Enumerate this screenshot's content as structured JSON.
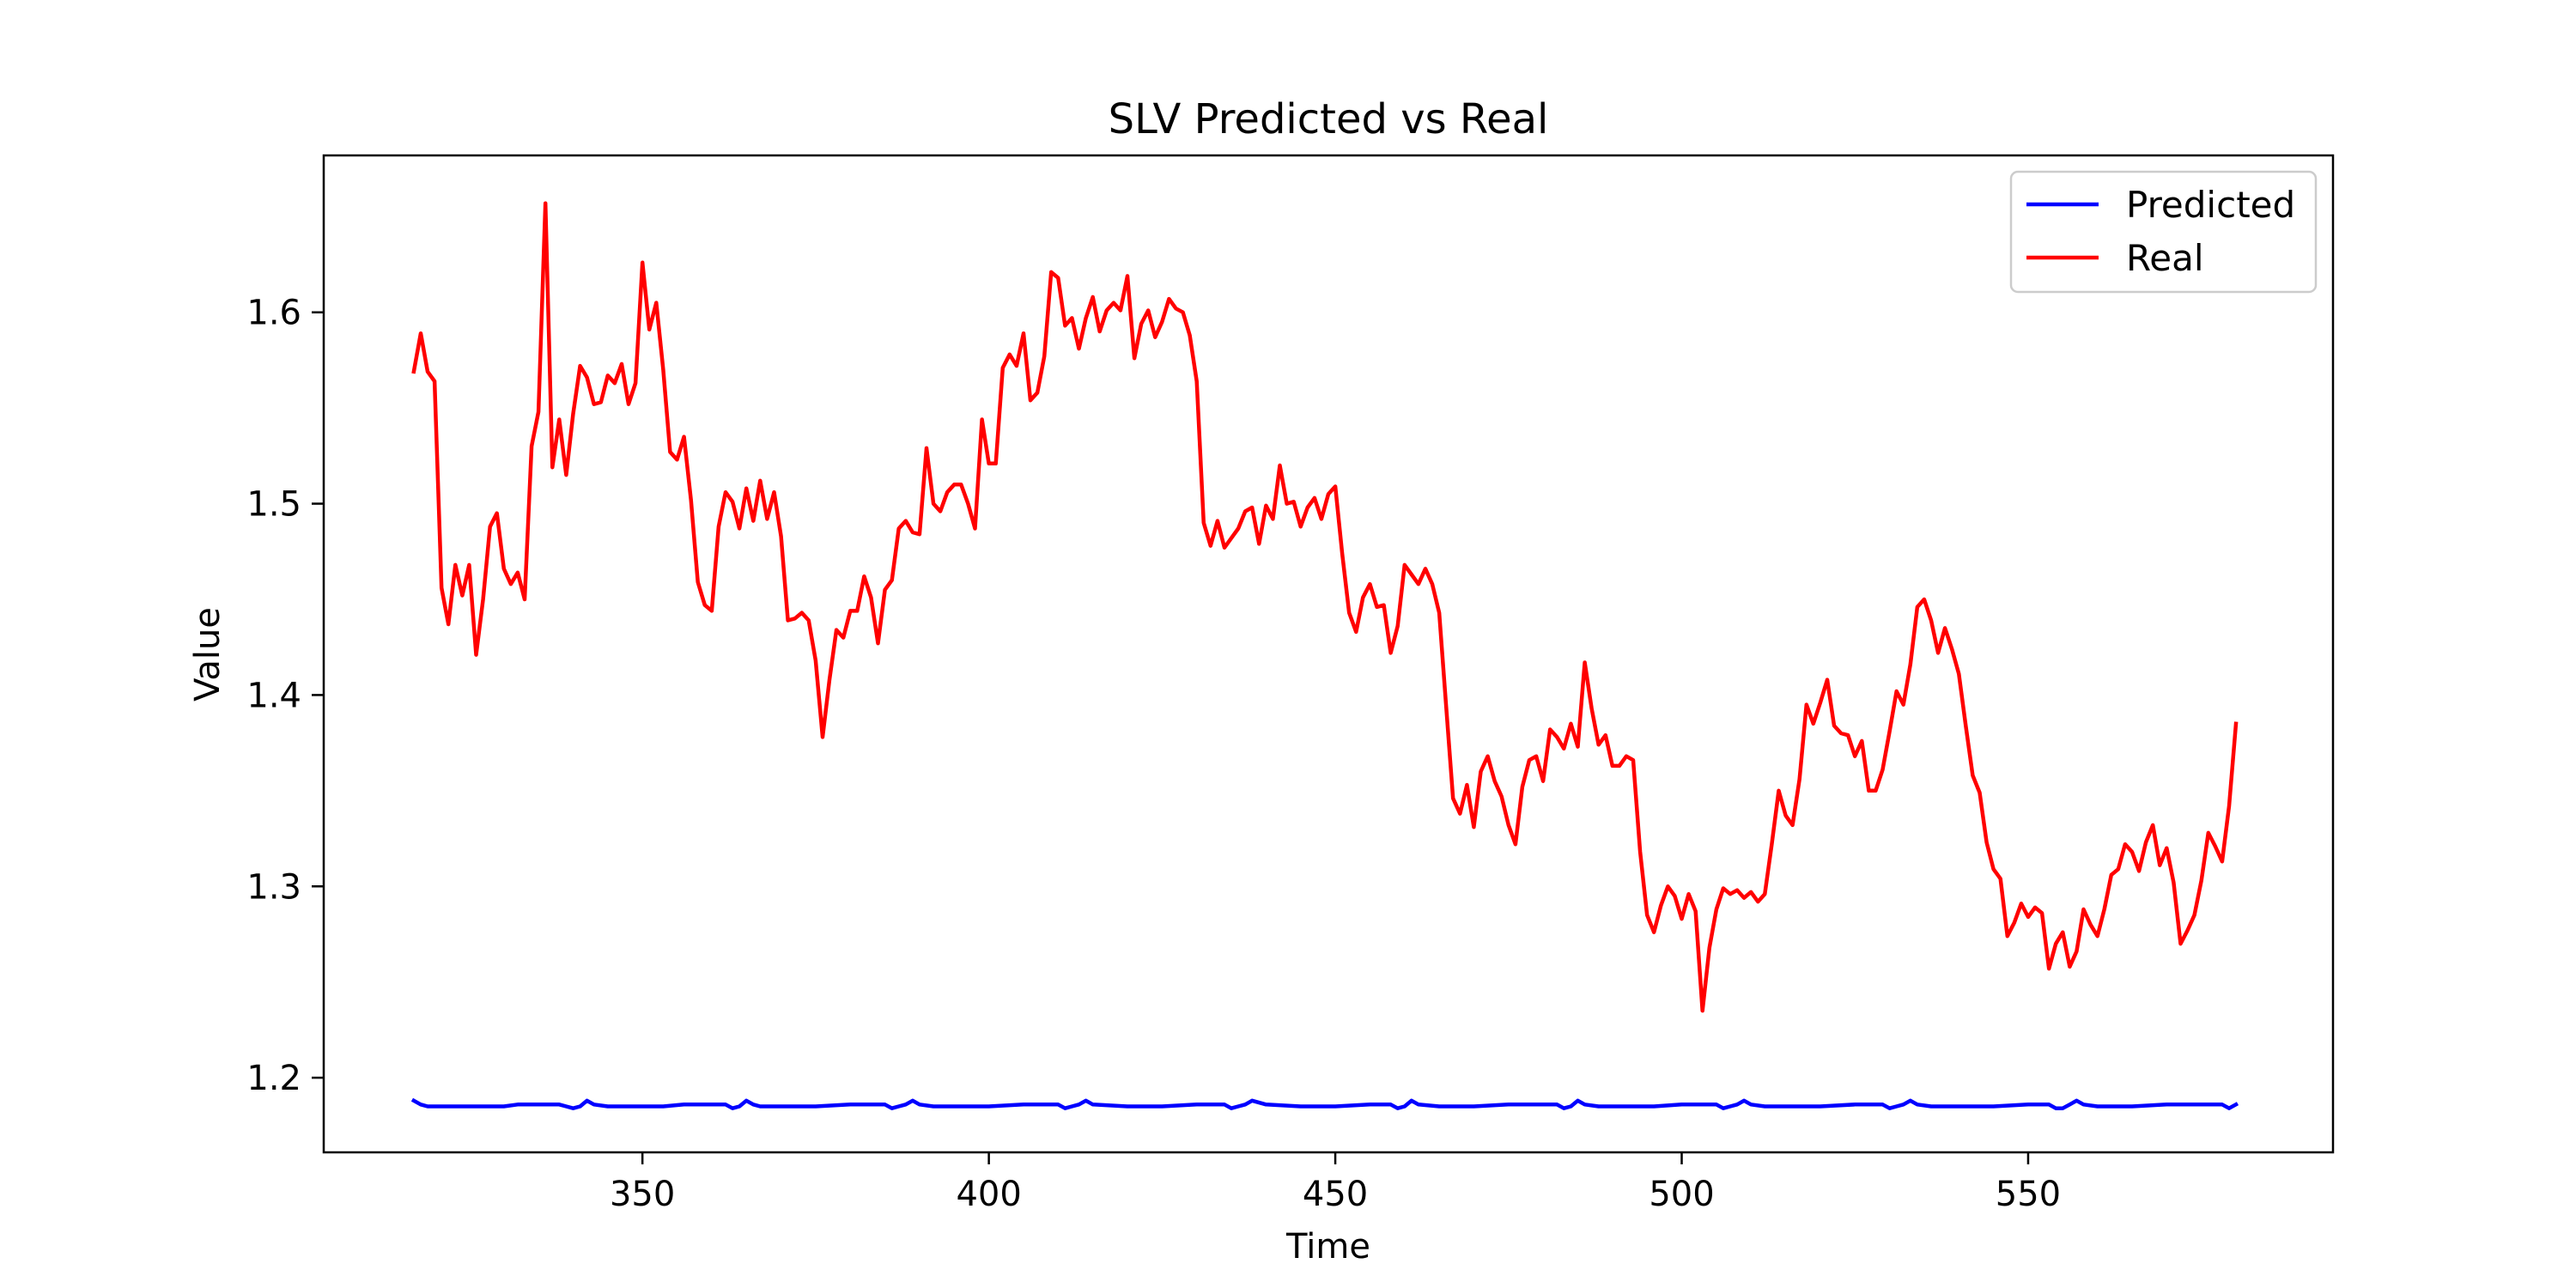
{
  "chart_data": {
    "type": "line",
    "title": "SLV Predicted vs Real",
    "xlabel": "Time",
    "ylabel": "Value",
    "xlim": [
      304,
      594
    ],
    "ylim": [
      1.161,
      1.682
    ],
    "xticks": [
      350,
      400,
      450,
      500,
      550
    ],
    "yticks": [
      1.2,
      1.3,
      1.4,
      1.5,
      1.6
    ],
    "xtick_labels": [
      "350",
      "400",
      "450",
      "500",
      "550"
    ],
    "ytick_labels": [
      "1.2",
      "1.3",
      "1.4",
      "1.5",
      "1.6"
    ],
    "grid": false,
    "legend_position": "top-right",
    "series": [
      {
        "name": "Predicted",
        "color": "#0000ff",
        "x": [
          317,
          318,
          319,
          320,
          322,
          324,
          326,
          328,
          330,
          332,
          334,
          336,
          338,
          339,
          340,
          341,
          342,
          343,
          345,
          347,
          350,
          353,
          356,
          359,
          362,
          363,
          364,
          365,
          366,
          367,
          370,
          375,
          380,
          385,
          386,
          387,
          388,
          389,
          390,
          392,
          395,
          400,
          405,
          410,
          411,
          412,
          413,
          414,
          415,
          420,
          425,
          430,
          434,
          435,
          436,
          437,
          438,
          440,
          445,
          450,
          455,
          458,
          459,
          460,
          461,
          462,
          465,
          470,
          475,
          480,
          482,
          483,
          484,
          485,
          486,
          488,
          492,
          496,
          500,
          503,
          505,
          506,
          507,
          508,
          509,
          510,
          512,
          516,
          520,
          525,
          529,
          530,
          531,
          532,
          533,
          534,
          536,
          540,
          545,
          550,
          553,
          554,
          555,
          556,
          557,
          558,
          560,
          565,
          570,
          575,
          578,
          579,
          580
        ],
        "y": [
          1.188,
          1.186,
          1.185,
          1.185,
          1.185,
          1.185,
          1.185,
          1.185,
          1.185,
          1.186,
          1.186,
          1.186,
          1.186,
          1.185,
          1.184,
          1.185,
          1.188,
          1.186,
          1.185,
          1.185,
          1.185,
          1.185,
          1.186,
          1.186,
          1.186,
          1.184,
          1.185,
          1.188,
          1.186,
          1.185,
          1.185,
          1.185,
          1.186,
          1.186,
          1.184,
          1.185,
          1.186,
          1.188,
          1.186,
          1.185,
          1.185,
          1.185,
          1.186,
          1.186,
          1.184,
          1.185,
          1.186,
          1.188,
          1.186,
          1.185,
          1.185,
          1.186,
          1.186,
          1.184,
          1.185,
          1.186,
          1.188,
          1.186,
          1.185,
          1.185,
          1.186,
          1.186,
          1.184,
          1.185,
          1.188,
          1.186,
          1.185,
          1.185,
          1.186,
          1.186,
          1.186,
          1.184,
          1.185,
          1.188,
          1.186,
          1.185,
          1.185,
          1.185,
          1.186,
          1.186,
          1.186,
          1.184,
          1.185,
          1.186,
          1.188,
          1.186,
          1.185,
          1.185,
          1.185,
          1.186,
          1.186,
          1.184,
          1.185,
          1.186,
          1.188,
          1.186,
          1.185,
          1.185,
          1.185,
          1.186,
          1.186,
          1.184,
          1.184,
          1.186,
          1.188,
          1.186,
          1.185,
          1.185,
          1.186,
          1.186,
          1.186,
          1.184,
          1.186
        ]
      },
      {
        "name": "Real",
        "color": "#ff0000",
        "x": [
          317,
          318,
          319,
          320,
          321,
          322,
          323,
          324,
          325,
          326,
          327,
          328,
          329,
          330,
          331,
          332,
          333,
          334,
          335,
          336,
          337,
          338,
          339,
          340,
          341,
          342,
          343,
          344,
          345,
          346,
          347,
          348,
          349,
          350,
          351,
          352,
          353,
          354,
          355,
          356,
          357,
          358,
          359,
          360,
          361,
          362,
          363,
          364,
          365,
          366,
          367,
          368,
          369,
          370,
          371,
          372,
          373,
          374,
          375,
          376,
          377,
          378,
          379,
          380,
          381,
          382,
          383,
          384,
          385,
          386,
          387,
          388,
          389,
          390,
          391,
          392,
          393,
          394,
          395,
          396,
          397,
          398,
          399,
          400,
          401,
          402,
          403,
          404,
          405,
          406,
          407,
          408,
          409,
          410,
          411,
          412,
          413,
          414,
          415,
          416,
          417,
          418,
          419,
          420,
          421,
          422,
          423,
          424,
          425,
          426,
          427,
          428,
          429,
          430,
          431,
          432,
          433,
          434,
          435,
          436,
          437,
          438,
          439,
          440,
          441,
          442,
          443,
          444,
          445,
          446,
          447,
          448,
          449,
          450,
          451,
          452,
          453,
          454,
          455,
          456,
          457,
          458,
          459,
          460,
          461,
          462,
          463,
          464,
          465,
          466,
          467,
          468,
          469,
          470,
          471,
          472,
          473,
          474,
          475,
          476,
          477,
          478,
          479,
          480,
          481,
          482,
          483,
          484,
          485,
          486,
          487,
          488,
          489,
          490,
          491,
          492,
          493,
          494,
          495,
          496,
          497,
          498,
          499,
          500,
          501,
          502,
          503,
          504,
          505,
          506,
          507,
          508,
          509,
          510,
          511,
          512,
          513,
          514,
          515,
          516,
          517,
          518,
          519,
          520,
          521,
          522,
          523,
          524,
          525,
          526,
          527,
          528,
          529,
          530,
          531,
          532,
          533,
          534,
          535,
          536,
          537,
          538,
          539,
          540,
          541,
          542,
          543,
          544,
          545,
          546,
          547,
          548,
          549,
          550,
          551,
          552,
          553,
          554,
          555,
          556,
          557,
          558,
          559,
          560,
          561,
          562,
          563,
          564,
          565,
          566,
          567,
          568,
          569,
          570,
          571,
          572,
          573,
          574,
          575,
          576,
          577,
          578,
          579,
          580
        ],
        "y": [
          1.569,
          1.589,
          1.569,
          1.564,
          1.456,
          1.437,
          1.468,
          1.452,
          1.468,
          1.421,
          1.45,
          1.488,
          1.495,
          1.466,
          1.458,
          1.464,
          1.45,
          1.53,
          1.548,
          1.657,
          1.519,
          1.544,
          1.515,
          1.547,
          1.572,
          1.566,
          1.552,
          1.553,
          1.567,
          1.563,
          1.573,
          1.552,
          1.563,
          1.626,
          1.591,
          1.605,
          1.57,
          1.527,
          1.523,
          1.535,
          1.502,
          1.459,
          1.447,
          1.444,
          1.488,
          1.506,
          1.501,
          1.487,
          1.508,
          1.491,
          1.512,
          1.492,
          1.506,
          1.483,
          1.439,
          1.44,
          1.443,
          1.439,
          1.418,
          1.378,
          1.408,
          1.434,
          1.43,
          1.444,
          1.444,
          1.462,
          1.451,
          1.427,
          1.455,
          1.46,
          1.487,
          1.491,
          1.485,
          1.484,
          1.529,
          1.5,
          1.496,
          1.506,
          1.51,
          1.51,
          1.5,
          1.487,
          1.544,
          1.521,
          1.521,
          1.571,
          1.578,
          1.572,
          1.589,
          1.554,
          1.558,
          1.577,
          1.621,
          1.618,
          1.593,
          1.597,
          1.581,
          1.597,
          1.608,
          1.59,
          1.601,
          1.605,
          1.601,
          1.619,
          1.576,
          1.594,
          1.601,
          1.587,
          1.595,
          1.607,
          1.602,
          1.6,
          1.588,
          1.564,
          1.49,
          1.478,
          1.491,
          1.477,
          1.482,
          1.487,
          1.496,
          1.498,
          1.479,
          1.499,
          1.492,
          1.52,
          1.5,
          1.501,
          1.488,
          1.498,
          1.503,
          1.492,
          1.505,
          1.509,
          1.474,
          1.443,
          1.433,
          1.451,
          1.458,
          1.446,
          1.447,
          1.422,
          1.436,
          1.468,
          1.463,
          1.458,
          1.466,
          1.458,
          1.443,
          1.394,
          1.346,
          1.338,
          1.353,
          1.331,
          1.36,
          1.368,
          1.355,
          1.347,
          1.332,
          1.322,
          1.352,
          1.366,
          1.368,
          1.355,
          1.382,
          1.378,
          1.372,
          1.385,
          1.373,
          1.417,
          1.393,
          1.374,
          1.379,
          1.363,
          1.363,
          1.368,
          1.366,
          1.318,
          1.285,
          1.276,
          1.29,
          1.3,
          1.295,
          1.283,
          1.296,
          1.287,
          1.235,
          1.268,
          1.288,
          1.299,
          1.296,
          1.298,
          1.294,
          1.297,
          1.292,
          1.296,
          1.322,
          1.35,
          1.337,
          1.332,
          1.356,
          1.395,
          1.385,
          1.396,
          1.408,
          1.384,
          1.38,
          1.379,
          1.368,
          1.376,
          1.35,
          1.35,
          1.361,
          1.381,
          1.402,
          1.395,
          1.416,
          1.446,
          1.45,
          1.439,
          1.422,
          1.435,
          1.424,
          1.411,
          1.384,
          1.358,
          1.349,
          1.323,
          1.309,
          1.304,
          1.274,
          1.281,
          1.291,
          1.284,
          1.289,
          1.286,
          1.257,
          1.27,
          1.276,
          1.258,
          1.266,
          1.288,
          1.28,
          1.274,
          1.288,
          1.306,
          1.309,
          1.322,
          1.318,
          1.308,
          1.323,
          1.332,
          1.311,
          1.32,
          1.302,
          1.27,
          1.277,
          1.285,
          1.303,
          1.328,
          1.321,
          1.313,
          1.342,
          1.385
        ]
      }
    ]
  }
}
